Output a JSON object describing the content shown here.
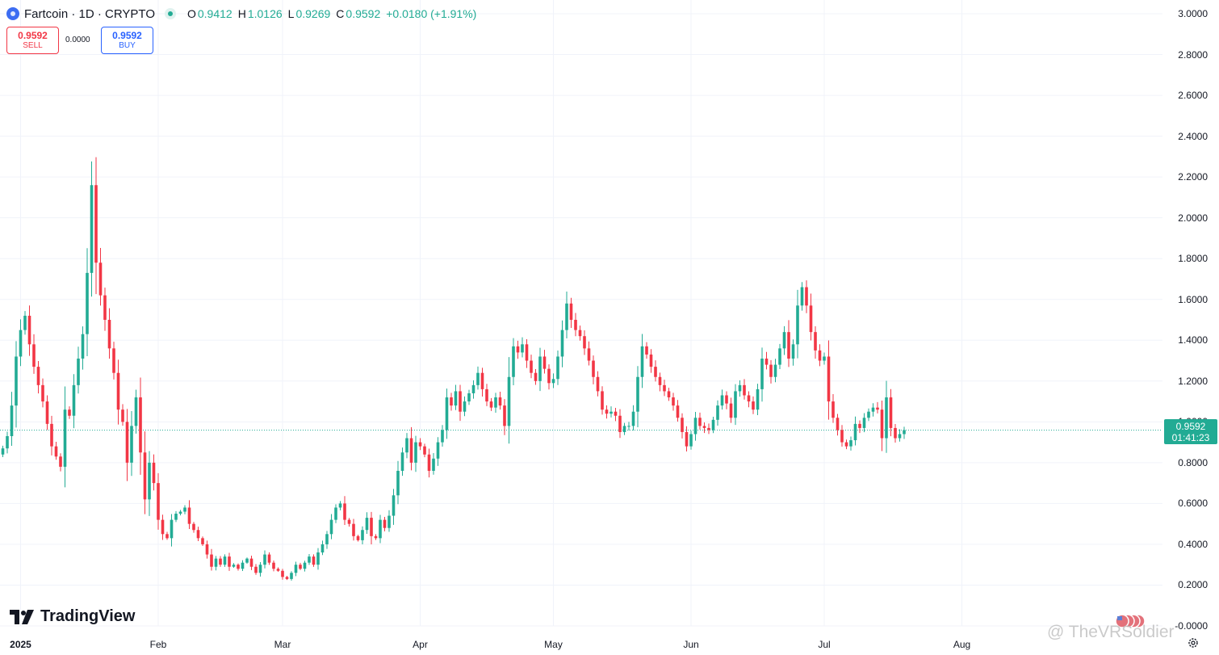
{
  "header": {
    "symbol_title": "Fartcoin · 1D · CRYPTO",
    "open_label": "O",
    "open_value": "0.9412",
    "high_label": "H",
    "high_value": "1.0126",
    "low_label": "L",
    "low_value": "0.9269",
    "close_label": "C",
    "close_value": "0.9592",
    "change": "+0.0180 (+1.91%)"
  },
  "trade": {
    "sell_price": "0.9592",
    "sell_label": "SELL",
    "spread": "0.0000",
    "buy_price": "0.9592",
    "buy_label": "BUY"
  },
  "price_label": {
    "price": "0.9592",
    "countdown": "01:41:23"
  },
  "branding": {
    "logo_text": "TradingView"
  },
  "watermark": "@ TheVRSoldier",
  "colors": {
    "up": "#22ab94",
    "down": "#f23645",
    "grid": "#f0f3fa",
    "last_line": "#22ab94"
  },
  "chart_data": {
    "type": "candlestick",
    "x_axis_labels": [
      "2025",
      "Feb",
      "Mar",
      "Apr",
      "May",
      "Jun",
      "Jul",
      "Aug"
    ],
    "y_ticks": [
      "3.0000",
      "2.8000",
      "2.6000",
      "2.4000",
      "2.2000",
      "2.0000",
      "1.8000",
      "1.6000",
      "1.4000",
      "1.2000",
      "1.0000",
      "0.8000",
      "0.6000",
      "0.4000",
      "0.2000",
      "-0.0000"
    ],
    "ylim": [
      0,
      3
    ],
    "last_price": 0.9592,
    "grid": true,
    "start_date": "2024-12-28",
    "closes": [
      0.87,
      0.93,
      1.08,
      1.32,
      1.45,
      1.52,
      1.38,
      1.27,
      1.18,
      1.1,
      0.99,
      0.88,
      0.83,
      0.78,
      1.06,
      1.03,
      1.18,
      1.31,
      1.43,
      1.73,
      2.16,
      1.78,
      1.62,
      1.5,
      1.36,
      1.24,
      1.06,
      1.0,
      0.8,
      0.98,
      1.12,
      0.85,
      0.62,
      0.8,
      0.7,
      0.52,
      0.45,
      0.43,
      0.52,
      0.55,
      0.56,
      0.58,
      0.5,
      0.47,
      0.43,
      0.4,
      0.35,
      0.29,
      0.33,
      0.3,
      0.34,
      0.29,
      0.3,
      0.28,
      0.31,
      0.33,
      0.29,
      0.26,
      0.3,
      0.35,
      0.31,
      0.28,
      0.27,
      0.24,
      0.23,
      0.26,
      0.3,
      0.28,
      0.31,
      0.34,
      0.3,
      0.36,
      0.4,
      0.45,
      0.52,
      0.58,
      0.6,
      0.52,
      0.5,
      0.44,
      0.42,
      0.47,
      0.53,
      0.44,
      0.43,
      0.52,
      0.48,
      0.54,
      0.64,
      0.76,
      0.85,
      0.92,
      0.8,
      0.9,
      0.88,
      0.84,
      0.76,
      0.82,
      0.9,
      0.96,
      1.12,
      1.08,
      1.15,
      1.05,
      1.1,
      1.14,
      1.18,
      1.24,
      1.16,
      1.1,
      1.07,
      1.12,
      1.08,
      0.98,
      1.22,
      1.37,
      1.34,
      1.38,
      1.3,
      1.24,
      1.2,
      1.32,
      1.26,
      1.19,
      1.21,
      1.32,
      1.45,
      1.58,
      1.5,
      1.45,
      1.42,
      1.36,
      1.3,
      1.22,
      1.15,
      1.06,
      1.04,
      1.05,
      1.03,
      0.95,
      0.98,
      0.98,
      1.05,
      1.22,
      1.37,
      1.33,
      1.27,
      1.22,
      1.18,
      1.15,
      1.12,
      1.08,
      1.02,
      0.95,
      0.88,
      0.94,
      1.02,
      0.98,
      0.97,
      0.96,
      1.01,
      1.08,
      1.13,
      1.09,
      1.02,
      1.15,
      1.18,
      1.13,
      1.1,
      1.06,
      1.16,
      1.31,
      1.28,
      1.22,
      1.28,
      1.36,
      1.44,
      1.31,
      1.38,
      1.57,
      1.66,
      1.57,
      1.44,
      1.35,
      1.3,
      1.32,
      1.1,
      1.02,
      0.96,
      0.9,
      0.88,
      0.91,
      0.99,
      0.97,
      1.02,
      1.05,
      1.07,
      1.06,
      0.92,
      1.12,
      0.97,
      0.92,
      0.94,
      0.9592
    ]
  }
}
